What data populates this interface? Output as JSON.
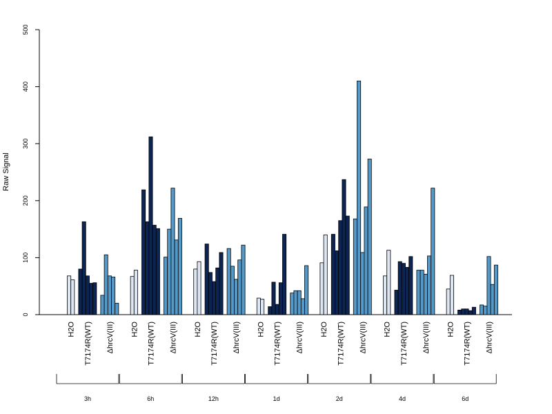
{
  "chart_data": {
    "type": "bar",
    "title": "",
    "xlabel": "",
    "ylabel": "Raw Signal",
    "ylim": [
      0,
      500
    ],
    "yticks": [
      0,
      100,
      200,
      300,
      400,
      500
    ],
    "grid": false,
    "colors": {
      "H2O": "#dde6f3",
      "T7174R(WT)": "#0d2552",
      "ΔhrcV(III)": "#5599c8"
    },
    "condition_labels": [
      "H2O",
      "T7174R(WT)",
      "ΔhrcV(III)"
    ],
    "groups": [
      {
        "time": "3h",
        "conditions": [
          {
            "name": "H2O",
            "values": [
              68,
              61
            ]
          },
          {
            "name": "T7174R(WT)",
            "values": [
              80,
              163,
              68,
              55,
              56
            ]
          },
          {
            "name": "ΔhrcV(III)",
            "values": [
              34,
              105,
              68,
              66,
              20
            ]
          }
        ]
      },
      {
        "time": "6h",
        "conditions": [
          {
            "name": "H2O",
            "values": [
              67,
              78
            ]
          },
          {
            "name": "T7174R(WT)",
            "values": [
              219,
              163,
              312,
              157,
              151
            ]
          },
          {
            "name": "ΔhrcV(III)",
            "values": [
              101,
              150,
              222,
              131,
              169
            ]
          }
        ]
      },
      {
        "time": "12h",
        "conditions": [
          {
            "name": "H2O",
            "values": [
              80,
              93
            ]
          },
          {
            "name": "T7174R(WT)",
            "values": [
              124,
              74,
              58,
              82,
              109
            ]
          },
          {
            "name": "ΔhrcV(III)",
            "values": [
              116,
              85,
              62,
              96,
              122
            ]
          }
        ]
      },
      {
        "time": "1d",
        "conditions": [
          {
            "name": "H2O",
            "values": [
              29,
              27
            ]
          },
          {
            "name": "T7174R(WT)",
            "values": [
              14,
              57,
              18,
              56,
              141
            ]
          },
          {
            "name": "ΔhrcV(III)",
            "values": [
              38,
              42,
              42,
              28,
              86
            ]
          }
        ]
      },
      {
        "time": "2d",
        "conditions": [
          {
            "name": "H2O",
            "values": [
              91,
              140
            ]
          },
          {
            "name": "T7174R(WT)",
            "values": [
              141,
              112,
              165,
              237,
              173
            ]
          },
          {
            "name": "ΔhrcV(III)",
            "values": [
              168,
              410,
              109,
              189,
              273
            ]
          }
        ]
      },
      {
        "time": "4d",
        "conditions": [
          {
            "name": "H2O",
            "values": [
              68,
              113
            ]
          },
          {
            "name": "T7174R(WT)",
            "values": [
              43,
              93,
              90,
              83,
              102
            ]
          },
          {
            "name": "ΔhrcV(III)",
            "values": [
              78,
              78,
              71,
              103,
              222
            ]
          }
        ]
      },
      {
        "time": "6d",
        "conditions": [
          {
            "name": "H2O",
            "values": [
              45,
              69
            ]
          },
          {
            "name": "T7174R(WT)",
            "values": [
              8,
              10,
              10,
              7,
              13
            ]
          },
          {
            "name": "ΔhrcV(III)",
            "values": [
              17,
              15,
              102,
              53,
              87
            ]
          }
        ]
      }
    ]
  }
}
